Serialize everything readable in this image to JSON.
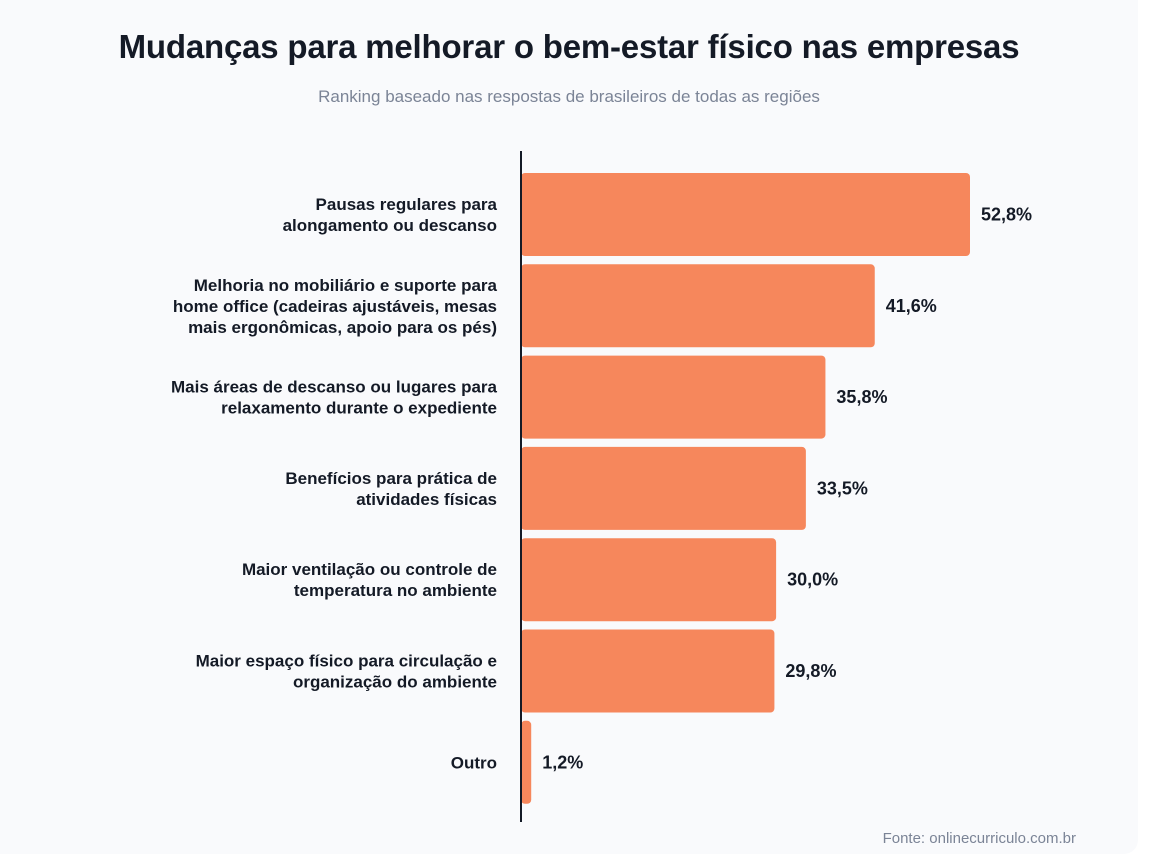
{
  "chart_data": {
    "type": "bar",
    "orientation": "horizontal",
    "title": "Mudanças para melhorar o bem-estar físico nas empresas",
    "subtitle": "Ranking baseado nas respostas de brasileiros de todas as regiões",
    "categories": [
      [
        "Pausas regulares para",
        "alongamento ou descanso"
      ],
      [
        "Melhoria no mobiliário e suporte para",
        "home office (cadeiras ajustáveis, mesas",
        "mais ergonômicas, apoio para os pés)"
      ],
      [
        "Mais áreas de descanso ou lugares para",
        "relaxamento durante o expediente"
      ],
      [
        "Benefícios para prática de",
        "atividades físicas"
      ],
      [
        "Maior ventilação ou controle de",
        "temperatura no ambiente"
      ],
      [
        "Maior espaço físico para circulação e",
        "organização do ambiente"
      ],
      [
        "Outro"
      ]
    ],
    "values": [
      52.8,
      41.6,
      35.8,
      33.5,
      30.0,
      29.8,
      1.2
    ],
    "value_labels": [
      "52,8%",
      "41,6%",
      "35,8%",
      "33,5%",
      "30,0%",
      "29,8%",
      "1,2%"
    ],
    "xlim": [
      0,
      52.8
    ],
    "grid": false,
    "legend": "none",
    "bar_color": "#f6875c",
    "axis_color": "#141a26"
  },
  "source": "Fonte: onlinecurriculo.com.br"
}
